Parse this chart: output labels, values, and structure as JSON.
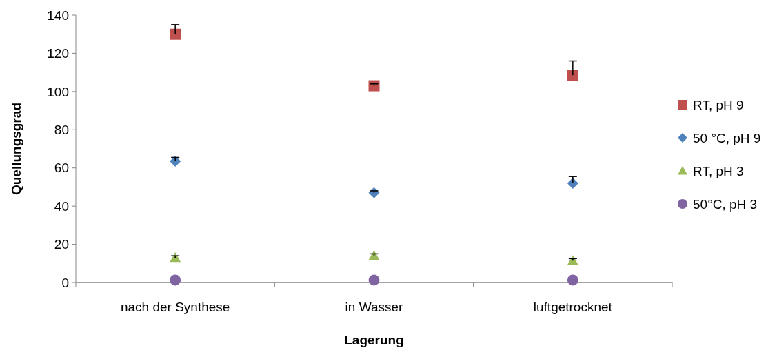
{
  "chart_data": {
    "type": "scatter",
    "xlabel": "Lagerung",
    "ylabel": "Quellungsgrad",
    "categories": [
      "nach der Synthese",
      "in Wasser",
      "luftgetrocknet"
    ],
    "ylim": [
      0,
      140
    ],
    "yticks": [
      0,
      20,
      40,
      60,
      80,
      100,
      120,
      140
    ],
    "grid": false,
    "legend": "right",
    "series": [
      {
        "name": "RT, pH 9",
        "color": "#c0504d",
        "marker": "square",
        "values": [
          130,
          103,
          108.5
        ],
        "errors": [
          [
            130,
            135
          ],
          [
            103,
            104
          ],
          [
            108.5,
            116
          ]
        ]
      },
      {
        "name": "50 °C, pH 9",
        "color": "#4f81bd",
        "marker": "diamond",
        "values": [
          63.5,
          47,
          52
        ],
        "errors": [
          [
            63.5,
            65.5
          ],
          [
            47,
            48
          ],
          [
            52,
            55.5
          ]
        ]
      },
      {
        "name": "RT, pH 3",
        "color": "#9bbb59",
        "marker": "triangle",
        "values": [
          13,
          14,
          11.5
        ],
        "errors": [
          [
            13,
            14
          ],
          [
            14,
            15
          ],
          [
            11.5,
            12.5
          ]
        ]
      },
      {
        "name": "50°C, pH 3",
        "color": "#8064a2",
        "marker": "circle",
        "values": [
          1.3,
          1.3,
          1.3
        ]
      }
    ]
  }
}
